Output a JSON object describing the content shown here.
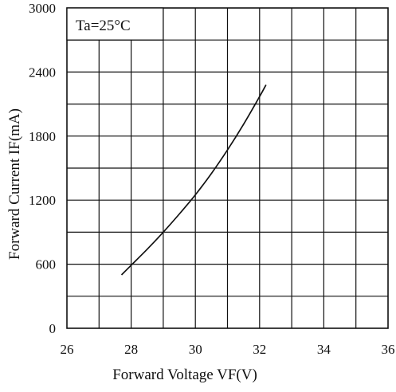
{
  "chart_data": {
    "type": "line",
    "title": "",
    "xlabel": "Forward Voltage VF(V)",
    "ylabel": "Forward Current IF(mA)",
    "xlim": [
      26,
      36
    ],
    "ylim": [
      0,
      3000
    ],
    "x_major_ticks": [
      26,
      28,
      30,
      32,
      34,
      36
    ],
    "y_major_ticks": [
      0,
      600,
      1200,
      1800,
      2400,
      3000
    ],
    "x_grid_step": 1,
    "y_grid_step": 300,
    "grid": true,
    "annotation": "Ta=25°C",
    "series": [
      {
        "x": [
          27.7,
          28.0,
          28.5,
          29.0,
          29.5,
          30.0,
          30.5,
          31.0,
          31.5,
          32.0,
          32.2
        ],
        "y": [
          500,
          590,
          740,
          900,
          1070,
          1250,
          1450,
          1670,
          1910,
          2170,
          2280
        ]
      }
    ]
  }
}
